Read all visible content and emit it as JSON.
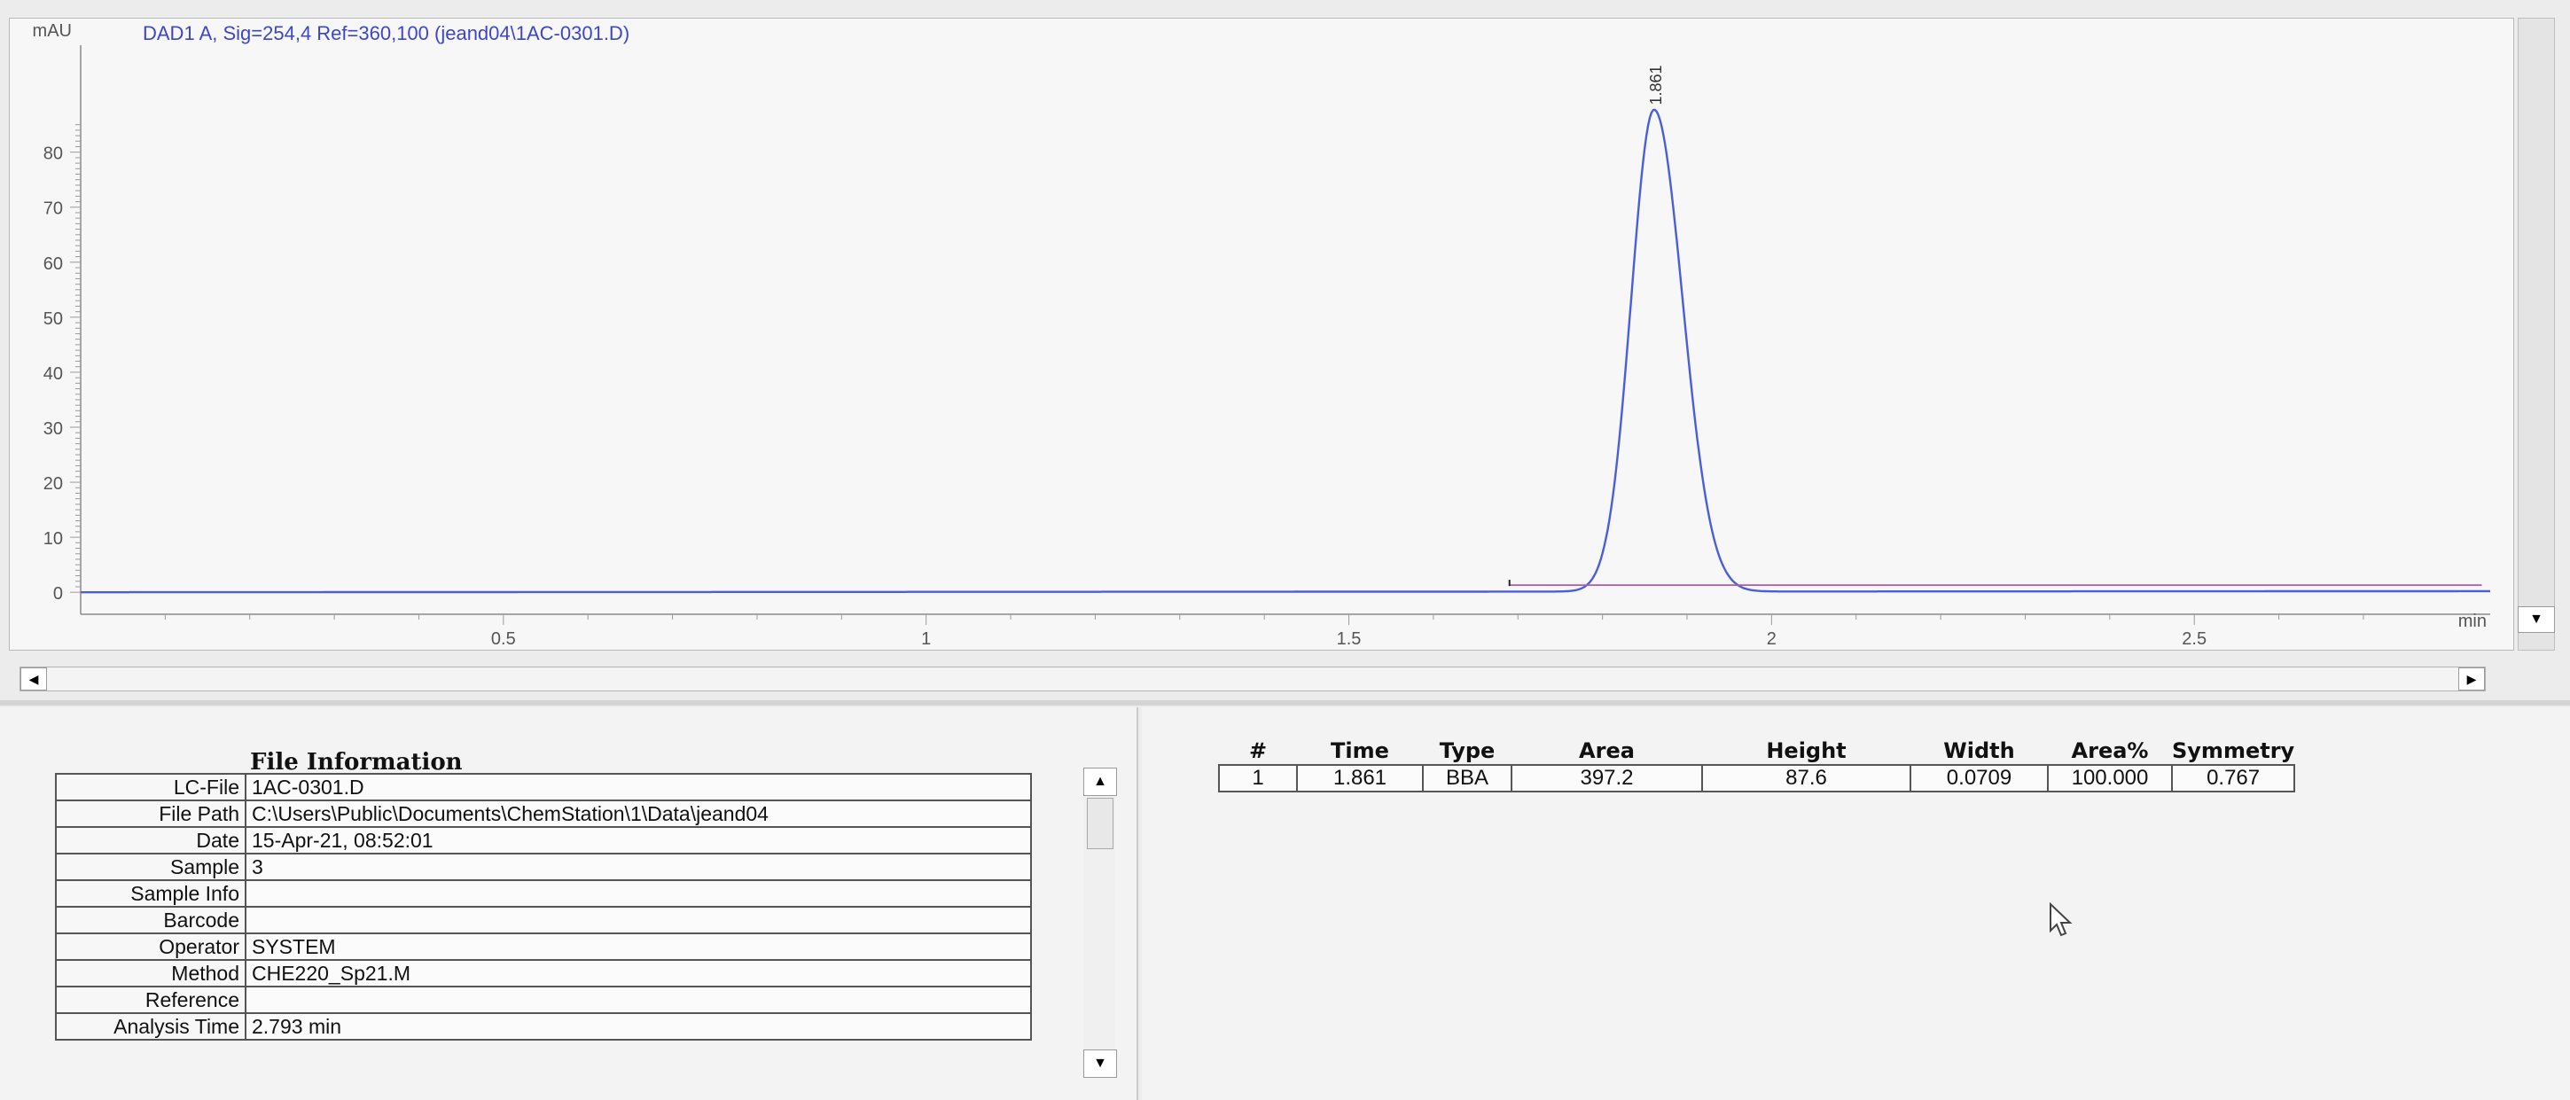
{
  "chart": {
    "title": "DAD1 A, Sig=254,4 Ref=360,100 (jeand04\\1AC-0301.D)"
  },
  "chart_data": {
    "type": "line",
    "ylabel": "mAU",
    "xlabel": "min",
    "xlim": [
      0,
      2.85
    ],
    "ylim": [
      -4,
      93
    ],
    "x_ticks": [
      0.5,
      1,
      1.5,
      2,
      2.5
    ],
    "x_tick_labels": [
      "0.5",
      "1",
      "1.5",
      "2",
      "2.5"
    ],
    "y_ticks": [
      0,
      10,
      20,
      30,
      40,
      50,
      60,
      70,
      80
    ],
    "y_tick_labels": [
      "0",
      "10",
      "20",
      "30",
      "40",
      "50",
      "60",
      "70",
      "80"
    ],
    "grid": false,
    "series": [
      {
        "color": "#4a5ed8",
        "peak": {
          "time": 1.861,
          "height": 87.6,
          "width": 0.0709,
          "symmetry": 0.767
        },
        "baseline_start": 0.0,
        "baseline_end": 0.2
      }
    ],
    "baseline_segment": {
      "x_start": 1.69,
      "x_end": 2.84,
      "y": 1.3,
      "color": "#b05aa8"
    },
    "annotations": [
      {
        "text": "1.861",
        "x": 1.861,
        "y": 87.6
      }
    ]
  },
  "file_info": {
    "heading": "File Information",
    "rows": [
      {
        "label": "LC-File",
        "value": "1AC-0301.D"
      },
      {
        "label": "File Path",
        "value": "C:\\Users\\Public\\Documents\\ChemStation\\1\\Data\\jeand04"
      },
      {
        "label": "Date",
        "value": "15-Apr-21, 08:52:01"
      },
      {
        "label": "Sample",
        "value": "3"
      },
      {
        "label": "Sample Info",
        "value": ""
      },
      {
        "label": "Barcode",
        "value": ""
      },
      {
        "label": "Operator",
        "value": "SYSTEM"
      },
      {
        "label": "Method",
        "value": "CHE220_Sp21.M"
      },
      {
        "label": "Reference",
        "value": ""
      },
      {
        "label": "Analysis Time",
        "value": "2.793 min"
      }
    ]
  },
  "peak_table": {
    "headers": [
      "#",
      "Time",
      "Type",
      "Area",
      "Height",
      "Width",
      "Area%",
      "Symmetry"
    ],
    "rows": [
      [
        "1",
        "1.861",
        "BBA",
        "397.2",
        "87.6",
        "0.0709",
        "100.000",
        "0.767"
      ]
    ]
  },
  "icons": {
    "scroll_up": "▲",
    "scroll_down": "▼",
    "scroll_left": "◀",
    "scroll_right": "▶"
  }
}
